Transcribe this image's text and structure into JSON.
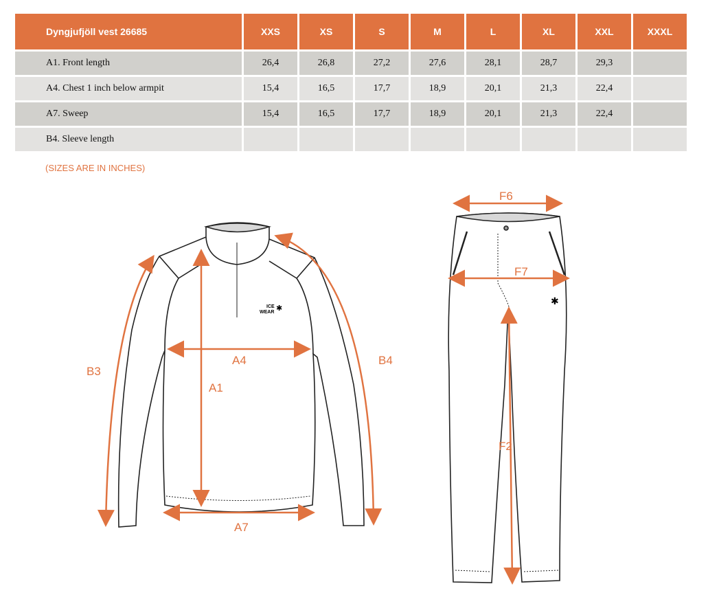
{
  "table": {
    "title": "Dyngjufjöll vest 26685",
    "sizes": [
      "XXS",
      "XS",
      "S",
      "M",
      "L",
      "XL",
      "XXL",
      "XXXL"
    ],
    "rows": [
      {
        "label": "A1. Front length",
        "values": [
          "26,4",
          "26,8",
          "27,2",
          "27,6",
          "28,1",
          "28,7",
          "29,3",
          ""
        ]
      },
      {
        "label": "A4. Chest 1 inch below armpit",
        "values": [
          "15,4",
          "16,5",
          "17,7",
          "18,9",
          "20,1",
          "21,3",
          "22,4",
          ""
        ]
      },
      {
        "label": "A7. Sweep",
        "values": [
          "15,4",
          "16,5",
          "17,7",
          "18,9",
          "20,1",
          "21,3",
          "22,4",
          ""
        ]
      },
      {
        "label": "B4. Sleeve length",
        "values": [
          "",
          "",
          "",
          "",
          "",
          "",
          "",
          ""
        ]
      }
    ]
  },
  "note": "(SIZES ARE IN INCHES)",
  "diagram": {
    "accent": "#e07340",
    "jacket_labels": {
      "a1": "A1",
      "a4": "A4",
      "a7": "A7",
      "b3": "B3",
      "b4": "B4"
    },
    "logo": {
      "line1": "ICE",
      "line2": "WEAR"
    },
    "pants_labels": {
      "f2": "F2",
      "f6": "F6",
      "f7": "F7"
    }
  }
}
